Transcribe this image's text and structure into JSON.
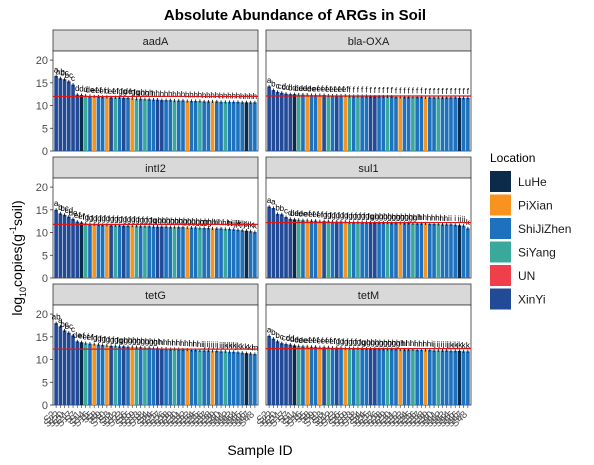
{
  "chart_data": {
    "type": "bar",
    "title": "Absolute Abundance of ARGs in Soil",
    "xlabel": "Sample ID",
    "ylabel": "log10copies(g-1soil)",
    "ylim": [
      0,
      22
    ],
    "yticks": [
      0,
      5,
      10,
      15,
      20
    ],
    "grid": false,
    "legend": {
      "title": "Location",
      "placement": "right",
      "items": [
        {
          "name": "LuHe",
          "color": "#0c2a4a"
        },
        {
          "name": "PiXian",
          "color": "#f7931e"
        },
        {
          "name": "ShiJiZhen",
          "color": "#1e72bd"
        },
        {
          "name": "SiYang",
          "color": "#3aa89a"
        },
        {
          "name": "UN",
          "color": "#ef3f4a"
        },
        {
          "name": "XinYi",
          "color": "#234a97"
        }
      ]
    },
    "x_tick_labels": [
      "S2",
      "S22",
      "S20",
      "S21",
      "S17",
      "S7",
      "S1",
      "S14",
      "S16",
      "S5",
      "S8",
      "S9",
      "S10",
      "S3",
      "S11",
      "S12",
      "S23",
      "S6",
      "S15",
      "S19",
      "S13",
      "S18",
      "S4",
      "S24",
      "S25",
      "S27",
      "S26",
      "S28",
      "S29",
      "S30",
      "S31",
      "S32",
      "S33",
      "S34",
      "S35",
      "S36",
      "S37",
      "S38",
      "S39",
      "S40",
      "S41",
      "S42",
      "S43",
      "S44",
      "S45",
      "S46",
      "S47",
      "S48"
    ],
    "bar_locations": [
      "XinYi",
      "XinYi",
      "XinYi",
      "XinYi",
      "XinYi",
      "XinYi",
      "LuHe",
      "SiYang",
      "ShiJiZhen",
      "PiXian",
      "ShiJiZhen",
      "ShiJiZhen",
      "PiXian",
      "XinYi",
      "SiYang",
      "ShiJiZhen",
      "XinYi",
      "ShiJiZhen",
      "PiXian",
      "SiYang",
      "ShiJiZhen",
      "SiYang",
      "ShiJiZhen",
      "ShiJiZhen",
      "XinYi",
      "XinYi",
      "ShiJiZhen",
      "ShiJiZhen",
      "SiYang",
      "ShiJiZhen",
      "ShiJiZhen",
      "PiXian",
      "ShiJiZhen",
      "ShiJiZhen",
      "SiYang",
      "ShiJiZhen",
      "ShiJiZhen",
      "PiXian",
      "ShiJiZhen",
      "ShiJiZhen",
      "SiYang",
      "ShiJiZhen",
      "ShiJiZhen",
      "ShiJiZhen",
      "ShiJiZhen",
      "LuHe",
      "ShiJiZhen",
      "ShiJiZhen"
    ],
    "panels": [
      {
        "name": "aadA",
        "mean_line": 12.0,
        "values": [
          16.5,
          16.0,
          15.8,
          15.3,
          14.6,
          12.4,
          12.3,
          12.2,
          12.1,
          12.0,
          12.0,
          11.9,
          11.9,
          11.8,
          11.8,
          11.8,
          11.7,
          11.7,
          11.6,
          11.5,
          11.5,
          11.4,
          11.4,
          11.3,
          11.3,
          11.2,
          11.2,
          11.2,
          11.1,
          11.1,
          11.1,
          11.0,
          11.0,
          11.0,
          11.0,
          10.9,
          10.9,
          10.9,
          10.9,
          10.8,
          10.8,
          10.8,
          10.8,
          10.8,
          10.7,
          10.7,
          10.7,
          10.7
        ],
        "letters": [
          "a",
          "ab",
          "bc",
          "bc",
          "c",
          "d",
          "d",
          "d",
          "de",
          "ef",
          "ef",
          "ef",
          "d",
          "ef",
          "ef",
          "fg",
          "fg",
          "de",
          "fg",
          "fg",
          "gh",
          "gh",
          "gh",
          "h",
          "h",
          "h",
          "h",
          "h",
          "h",
          "h",
          "h",
          "h",
          "h",
          "h",
          "h",
          "h",
          "h",
          "h",
          "h",
          "h",
          "h",
          "h",
          "h",
          "h",
          "h",
          "h",
          "h",
          "h"
        ]
      },
      {
        "name": "bla-OXA",
        "mean_line": 12.1,
        "values": [
          14.2,
          13.4,
          13.0,
          12.8,
          12.6,
          12.5,
          12.5,
          12.4,
          12.4,
          12.4,
          12.3,
          12.3,
          12.3,
          12.3,
          12.2,
          12.2,
          12.2,
          12.2,
          12.2,
          12.1,
          12.1,
          12.1,
          12.1,
          12.1,
          12.0,
          12.0,
          12.0,
          12.0,
          12.0,
          12.0,
          11.9,
          11.9,
          11.9,
          11.9,
          11.9,
          11.9,
          11.9,
          11.8,
          11.8,
          11.8,
          11.8,
          11.8,
          11.8,
          11.8,
          11.8,
          11.7,
          11.7,
          11.7
        ],
        "letters": [
          "a",
          "b",
          "c",
          "cd",
          "cd",
          "d",
          "d",
          "de",
          "de",
          "de",
          "de",
          "ef",
          "ef",
          "ef",
          "ef",
          "ef",
          "ef",
          "ef",
          "ef",
          "f",
          "f",
          "f",
          "f",
          "f",
          "f",
          "f",
          "f",
          "f",
          "f",
          "f",
          "f",
          "f",
          "f",
          "f",
          "f",
          "f",
          "f",
          "f",
          "f",
          "f",
          "f",
          "f",
          "f",
          "f",
          "f",
          "f",
          "f",
          "f"
        ]
      },
      {
        "name": "intI2",
        "mean_line": 11.8,
        "values": [
          15.0,
          14.2,
          13.9,
          13.5,
          13.0,
          12.4,
          12.2,
          12.0,
          11.9,
          11.8,
          11.8,
          11.7,
          11.7,
          11.6,
          11.6,
          11.6,
          11.5,
          11.5,
          11.5,
          11.5,
          11.4,
          11.4,
          11.4,
          11.3,
          11.3,
          11.3,
          11.3,
          11.2,
          11.2,
          11.2,
          11.2,
          11.1,
          11.1,
          11.1,
          11.0,
          11.0,
          11.0,
          10.9,
          10.9,
          10.9,
          10.8,
          10.8,
          10.7,
          10.6,
          10.5,
          10.4,
          10.3,
          10.1
        ],
        "letters": [
          "a",
          "b",
          "bc",
          "cd",
          "de",
          "ef",
          "ef",
          "fg",
          "fg",
          "fg",
          "fg",
          "fg",
          "fg",
          "fg",
          "fg",
          "fg",
          "fg",
          "fg",
          "fg",
          "fg",
          "fg",
          "fg",
          "fg",
          "fg",
          "gh",
          "gh",
          "gh",
          "gh",
          "gh",
          "gh",
          "gh",
          "gh",
          "gh",
          "gh",
          "gh",
          "gh",
          "ghi",
          "ghi",
          "hi",
          "hi",
          "hi",
          "hi",
          "hijk",
          "ijk",
          "ijk",
          "jk",
          "jk",
          "k"
        ]
      },
      {
        "name": "sul1",
        "mean_line": 12.2,
        "values": [
          15.7,
          15.4,
          14.1,
          14.0,
          13.4,
          13.0,
          12.9,
          12.8,
          12.7,
          12.7,
          12.6,
          12.6,
          12.5,
          12.5,
          12.5,
          12.4,
          12.4,
          12.4,
          12.4,
          12.3,
          12.3,
          12.3,
          12.3,
          12.3,
          12.2,
          12.2,
          12.2,
          12.2,
          12.2,
          12.1,
          12.1,
          12.1,
          12.1,
          12.1,
          12.0,
          12.0,
          12.0,
          12.0,
          11.9,
          11.9,
          11.9,
          11.8,
          11.8,
          11.8,
          11.7,
          11.6,
          11.5,
          10.9
        ],
        "letters": [
          "a",
          "a",
          "b",
          "b",
          "c",
          "d",
          "de",
          "de",
          "de",
          "ef",
          "ef",
          "ef",
          "ef",
          "fg",
          "fg",
          "fg",
          "fg",
          "fg",
          "fg",
          "fg",
          "fg",
          "fg",
          "fg",
          "fg",
          "fg",
          "gh",
          "gh",
          "gh",
          "gh",
          "gh",
          "gh",
          "gh",
          "gh",
          "gh",
          "gh",
          "gh",
          "hi",
          "hi",
          "hi",
          "hi",
          "hi",
          "hi",
          "hi",
          "i",
          "i",
          "ij",
          "ij",
          "k"
        ]
      },
      {
        "name": "tetG",
        "mean_line": 12.3,
        "values": [
          18.0,
          17.3,
          16.4,
          15.9,
          15.3,
          14.0,
          13.8,
          13.6,
          13.5,
          13.4,
          13.3,
          13.2,
          13.1,
          13.0,
          13.0,
          12.9,
          12.9,
          12.8,
          12.8,
          12.7,
          12.7,
          12.6,
          12.6,
          12.5,
          12.5,
          12.4,
          12.4,
          12.3,
          12.3,
          12.3,
          12.2,
          12.2,
          12.1,
          12.1,
          12.0,
          12.0,
          12.0,
          11.9,
          11.9,
          11.8,
          11.8,
          11.7,
          11.7,
          11.6,
          11.5,
          11.4,
          11.3,
          11.2
        ],
        "letters": [
          "ab",
          "a",
          "bc",
          "bc",
          "c",
          "de",
          "ef",
          "ef",
          "ef",
          "fg",
          "fg",
          "fg",
          "fg",
          "fg",
          "fg",
          "fg",
          "gh",
          "gh",
          "gh",
          "gh",
          "gh",
          "gh",
          "gh",
          "gh",
          "gh",
          "hi",
          "hi",
          "hi",
          "hi",
          "hi",
          "hi",
          "hi",
          "hi",
          "hi",
          "hi",
          "ij",
          "ij",
          "ij",
          "ij",
          "ij",
          "jk",
          "jk",
          "jk",
          "jk",
          "k",
          "k",
          "kl",
          "m"
        ]
      },
      {
        "name": "tetM",
        "mean_line": 12.4,
        "values": [
          15.2,
          14.6,
          14.0,
          13.6,
          13.4,
          13.3,
          13.1,
          13.0,
          12.9,
          12.9,
          12.8,
          12.8,
          12.7,
          12.7,
          12.7,
          12.6,
          12.6,
          12.6,
          12.5,
          12.5,
          12.5,
          12.5,
          12.4,
          12.4,
          12.4,
          12.4,
          12.3,
          12.3,
          12.3,
          12.3,
          12.3,
          12.2,
          12.2,
          12.2,
          12.2,
          12.1,
          12.1,
          12.1,
          12.1,
          12.0,
          12.0,
          12.0,
          12.0,
          11.9,
          11.9,
          11.9,
          11.8,
          11.8
        ],
        "letters": [
          "a",
          "b",
          "b",
          "c",
          "cd",
          "cd",
          "de",
          "de",
          "de",
          "ef",
          "ef",
          "ef",
          "ef",
          "ef",
          "ef",
          "ef",
          "fg",
          "fg",
          "fg",
          "fg",
          "fg",
          "fg",
          "fg",
          "gh",
          "gh",
          "gh",
          "gh",
          "gh",
          "gh",
          "gh",
          "gh",
          "gh",
          "hi",
          "hi",
          "hi",
          "hi",
          "hi",
          "hi",
          "hi",
          "ij",
          "ij",
          "ij",
          "ij",
          "jk",
          "jk",
          "jk",
          "k",
          "k"
        ]
      }
    ]
  }
}
